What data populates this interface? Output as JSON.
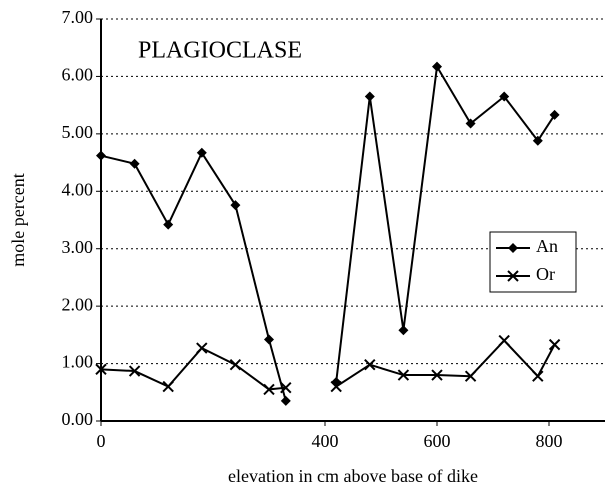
{
  "chart_data": {
    "type": "line",
    "title": "PLAGIOCLASE",
    "x_label": "elevation in cm above base of dike",
    "y_label": "mole percent",
    "x": [
      0,
      60,
      120,
      180,
      240,
      300,
      330,
      null,
      420,
      480,
      540,
      600,
      660,
      720,
      780,
      810
    ],
    "series": [
      {
        "name": "An",
        "color": "#000000",
        "marker": "diamond",
        "values": [
          4.62,
          4.48,
          3.42,
          4.67,
          3.76,
          1.42,
          0.35,
          null,
          0.68,
          5.65,
          1.58,
          6.17,
          5.18,
          5.65,
          4.88,
          5.33
        ]
      },
      {
        "name": "Or",
        "color": "#000000",
        "marker": "x",
        "values": [
          0.9,
          0.87,
          0.6,
          1.27,
          0.98,
          0.55,
          0.58,
          null,
          0.6,
          0.98,
          0.8,
          0.8,
          0.78,
          1.4,
          0.78,
          1.33
        ]
      }
    ],
    "xlim": [
      0,
      900
    ],
    "xticks": [
      0,
      400,
      600,
      800
    ],
    "ylim": [
      0,
      7
    ],
    "yticks": [
      {
        "value": 0,
        "label": "0.00"
      },
      {
        "value": 1,
        "label": "1.00"
      },
      {
        "value": 2,
        "label": "2.00"
      },
      {
        "value": 3,
        "label": "3.00"
      },
      {
        "value": 4,
        "label": "4.00"
      },
      {
        "value": 5,
        "label": "5.00"
      },
      {
        "value": 6,
        "label": "6.00"
      },
      {
        "value": 7,
        "label": "7.00"
      }
    ],
    "grid": true,
    "legend": "right"
  }
}
